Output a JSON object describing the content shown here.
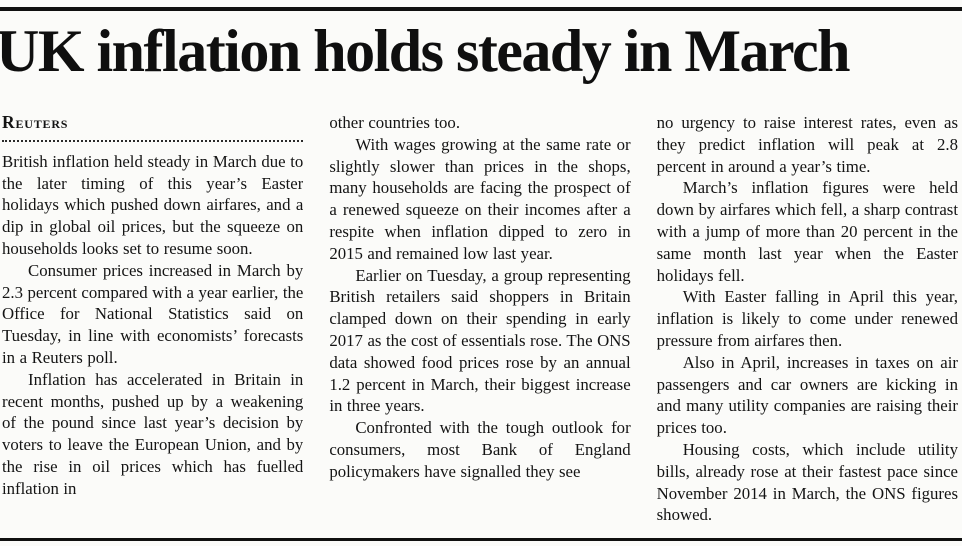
{
  "article": {
    "headline": "UK inflation holds steady in March",
    "byline": "Reuters",
    "text_color": "#141414",
    "paper_color": "#fbfbf9",
    "columns": [
      {
        "paragraphs": [
          "British inflation held steady in March due to the later timing of this year’s Easter holidays which pushed down airfares, and a dip in global oil prices, but the squeeze on households looks set to resume soon.",
          "Consumer prices increased in March by 2.3 percent compared with a year earlier, the Office for National Statistics said on Tuesday, in line with economists’ forecasts in a Reuters poll.",
          "Inflation has accelerated in Britain in recent months, pushed up by a weakening of the pound since last year’s decision by voters to leave the European Union, and by the rise in oil prices which has fuelled inflation in"
        ]
      },
      {
        "paragraphs": [
          "other countries too.",
          "With wages growing at the same rate or slightly slower than prices in the shops, many households are facing the prospect of a renewed squeeze on their incomes after a respite when inflation dipped to zero in 2015 and remained low last year.",
          "Earlier on Tuesday, a group representing British retailers said shoppers in Britain clamped down on their spending in early 2017 as the cost of essentials rose. The ONS data showed food prices rose by an annual 1.2 percent in March, their biggest increase in three years.",
          "Confronted with the tough outlook for consumers, most Bank of England policymakers have signalled they see"
        ]
      },
      {
        "paragraphs": [
          "no urgency to raise interest rates, even as they predict inflation will peak at 2.8 percent in around a year’s time.",
          "March’s inflation figures were held down by airfares which fell, a sharp contrast with a jump of more than 20 percent in the same month last year when the Easter holidays fell.",
          "With Easter falling in April this year, inflation is likely to come under renewed pressure from airfares then.",
          "Also in April, increases in taxes on air passengers and car owners are kicking in and many utility companies are raising their prices too.",
          "Housing costs, which include utility bills, already rose at their fastest pace since November 2014 in March, the ONS figures showed."
        ]
      }
    ]
  }
}
